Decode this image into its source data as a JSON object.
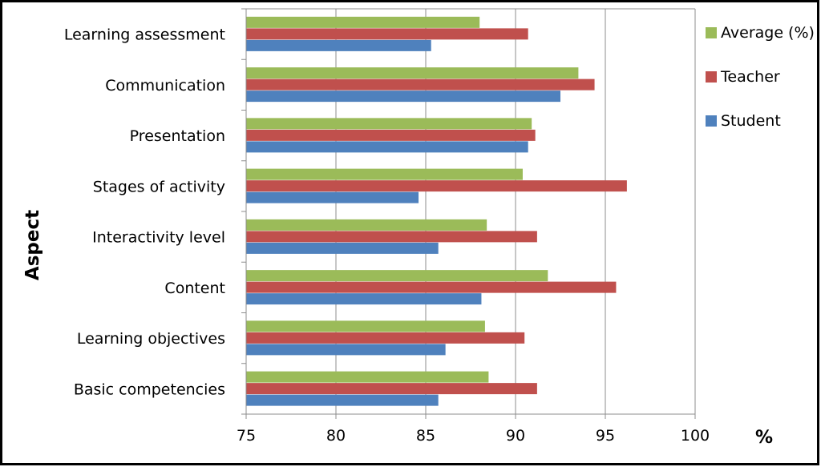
{
  "chart_data": {
    "type": "bar",
    "orientation": "horizontal",
    "title": "",
    "xlabel": "%",
    "ylabel": "Aspect",
    "xlim": [
      75,
      100
    ],
    "x_ticks": [
      75,
      80,
      85,
      90,
      95,
      100
    ],
    "grid": true,
    "legend_position": "top-right",
    "categories": [
      "Basic competencies",
      "Learning objectives",
      "Content",
      "Interactivity level",
      "Stages of activity",
      "Presentation",
      "Communication",
      "Learning assessment"
    ],
    "series": [
      {
        "name": "Student",
        "color": "#4f81bd",
        "values": [
          85.7,
          86.1,
          88.1,
          85.7,
          84.6,
          90.7,
          92.5,
          85.3
        ]
      },
      {
        "name": "Teacher",
        "color": "#c0504d",
        "values": [
          91.2,
          90.5,
          95.6,
          91.2,
          96.2,
          91.1,
          94.4,
          90.7
        ]
      },
      {
        "name": "Average (%)",
        "color": "#9bbb59",
        "values": [
          88.5,
          88.3,
          91.8,
          88.4,
          90.4,
          90.9,
          93.5,
          88.0
        ]
      }
    ],
    "legend_order": [
      "Average (%)",
      "Teacher",
      "Student"
    ]
  }
}
